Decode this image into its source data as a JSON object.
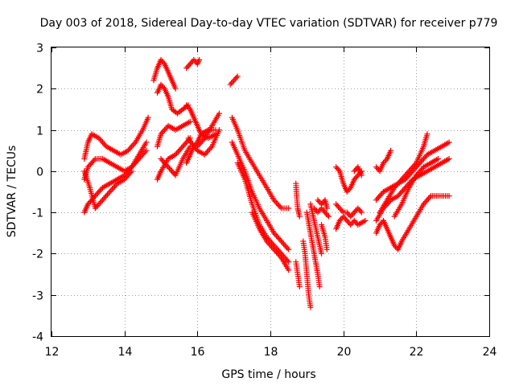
{
  "chart_data": {
    "type": "scatter",
    "title": "Day 003 of 2018, Sidereal Day-to-day VTEC variation (SDTVAR) for receiver p779",
    "xlabel": "GPS time / hours",
    "ylabel": "SDTVAR / TECUs",
    "xlim": [
      12,
      24
    ],
    "ylim": [
      -4,
      3
    ],
    "xticks": [
      "12",
      "14",
      "16",
      "18",
      "20",
      "22",
      "24"
    ],
    "yticks": [
      "-4",
      "-3",
      "-2",
      "-1",
      "0",
      "1",
      "2",
      "3"
    ],
    "grid": true,
    "marker": "plus",
    "color": "#ff0000",
    "series": [
      {
        "name": "track-1",
        "segments": [
          [
            [
              12.9,
              0.3
            ],
            [
              13.0,
              0.7
            ],
            [
              13.1,
              0.9
            ],
            [
              13.3,
              0.8
            ],
            [
              13.5,
              0.6
            ],
            [
              13.7,
              0.5
            ],
            [
              13.9,
              0.4
            ],
            [
              14.1,
              0.5
            ],
            [
              14.3,
              0.7
            ],
            [
              14.5,
              1.0
            ],
            [
              14.65,
              1.3
            ]
          ],
          [
            [
              12.9,
              -0.2
            ],
            [
              13.0,
              0.1
            ],
            [
              13.2,
              0.3
            ],
            [
              13.4,
              0.3
            ],
            [
              13.6,
              0.2
            ],
            [
              13.8,
              0.1
            ],
            [
              14.0,
              0.0
            ],
            [
              14.2,
              0.1
            ],
            [
              14.4,
              0.4
            ],
            [
              14.6,
              0.7
            ]
          ],
          [
            [
              12.9,
              -1.0
            ],
            [
              13.0,
              -0.8
            ],
            [
              13.2,
              -0.6
            ],
            [
              13.4,
              -0.4
            ],
            [
              13.6,
              -0.3
            ],
            [
              13.8,
              -0.2
            ],
            [
              14.0,
              -0.1
            ],
            [
              14.2,
              0.1
            ],
            [
              14.4,
              0.3
            ],
            [
              14.6,
              0.5
            ]
          ],
          [
            [
              12.9,
              0.0
            ],
            [
              13.05,
              -0.4
            ],
            [
              13.2,
              -0.9
            ],
            [
              13.4,
              -0.7
            ],
            [
              13.6,
              -0.5
            ],
            [
              13.8,
              -0.3
            ],
            [
              14.0,
              -0.2
            ],
            [
              14.2,
              0.0
            ]
          ]
        ]
      },
      {
        "name": "track-2",
        "segments": [
          [
            [
              14.8,
              2.2
            ],
            [
              14.9,
              2.5
            ],
            [
              15.0,
              2.7
            ],
            [
              15.1,
              2.6
            ],
            [
              15.2,
              2.4
            ],
            [
              15.3,
              2.2
            ],
            [
              15.4,
              2.0
            ]
          ],
          [
            [
              14.9,
              1.9
            ],
            [
              15.0,
              2.1
            ],
            [
              15.1,
              2.0
            ],
            [
              15.2,
              1.8
            ],
            [
              15.3,
              1.5
            ],
            [
              15.45,
              1.4
            ],
            [
              15.6,
              1.5
            ],
            [
              15.75,
              1.6
            ]
          ],
          [
            [
              14.9,
              0.6
            ],
            [
              15.0,
              0.9
            ],
            [
              15.2,
              1.1
            ],
            [
              15.4,
              1.0
            ],
            [
              15.6,
              1.1
            ],
            [
              15.8,
              1.2
            ]
          ],
          [
            [
              14.9,
              -0.2
            ],
            [
              15.0,
              0.0
            ],
            [
              15.2,
              0.3
            ],
            [
              15.4,
              0.4
            ],
            [
              15.6,
              0.6
            ],
            [
              15.8,
              0.8
            ]
          ],
          [
            [
              15.0,
              0.3
            ],
            [
              15.2,
              0.1
            ],
            [
              15.4,
              -0.1
            ],
            [
              15.6,
              0.3
            ],
            [
              15.8,
              0.6
            ]
          ]
        ]
      },
      {
        "name": "track-3",
        "segments": [
          [
            [
              15.7,
              2.5
            ],
            [
              15.8,
              2.6
            ],
            [
              15.9,
              2.7
            ],
            [
              16.0,
              2.6
            ],
            [
              16.05,
              2.7
            ]
          ],
          [
            [
              15.7,
              1.6
            ],
            [
              15.8,
              1.5
            ],
            [
              15.9,
              1.3
            ],
            [
              16.0,
              1.1
            ],
            [
              16.1,
              0.9
            ],
            [
              16.3,
              0.8
            ],
            [
              16.5,
              0.9
            ]
          ],
          [
            [
              15.7,
              0.2
            ],
            [
              15.8,
              0.4
            ],
            [
              15.9,
              0.6
            ],
            [
              16.0,
              0.7
            ],
            [
              16.1,
              0.9
            ],
            [
              16.3,
              1.0
            ],
            [
              16.5,
              1.0
            ]
          ],
          [
            [
              15.75,
              0.8
            ],
            [
              15.9,
              0.6
            ],
            [
              16.0,
              0.5
            ],
            [
              16.2,
              0.4
            ],
            [
              16.4,
              0.6
            ],
            [
              16.6,
              1.0
            ]
          ],
          [
            [
              16.0,
              0.6
            ],
            [
              16.2,
              0.8
            ],
            [
              16.4,
              1.1
            ],
            [
              16.6,
              1.4
            ]
          ]
        ]
      },
      {
        "name": "track-4",
        "segments": [
          [
            [
              16.9,
              2.1
            ],
            [
              17.0,
              2.2
            ],
            [
              17.1,
              2.3
            ]
          ],
          [
            [
              16.95,
              1.3
            ],
            [
              17.1,
              1.0
            ],
            [
              17.3,
              0.5
            ],
            [
              17.5,
              0.2
            ],
            [
              17.7,
              -0.1
            ],
            [
              17.9,
              -0.4
            ],
            [
              18.1,
              -0.7
            ],
            [
              18.3,
              -0.9
            ],
            [
              18.5,
              -0.9
            ]
          ],
          [
            [
              16.95,
              0.7
            ],
            [
              17.1,
              0.4
            ],
            [
              17.3,
              0.0
            ],
            [
              17.5,
              -0.5
            ],
            [
              17.7,
              -0.9
            ],
            [
              17.9,
              -1.2
            ],
            [
              18.1,
              -1.5
            ],
            [
              18.3,
              -1.7
            ],
            [
              18.5,
              -1.9
            ]
          ],
          [
            [
              17.1,
              0.2
            ],
            [
              17.3,
              -0.2
            ],
            [
              17.5,
              -0.8
            ],
            [
              17.7,
              -1.3
            ],
            [
              17.9,
              -1.6
            ],
            [
              18.1,
              -1.8
            ],
            [
              18.3,
              -2.0
            ],
            [
              18.5,
              -2.2
            ]
          ],
          [
            [
              17.5,
              -1.0
            ],
            [
              17.7,
              -1.4
            ],
            [
              17.9,
              -1.7
            ],
            [
              18.1,
              -1.9
            ],
            [
              18.3,
              -2.1
            ],
            [
              18.5,
              -2.4
            ]
          ]
        ]
      },
      {
        "name": "track-5",
        "segments": [
          [
            [
              18.7,
              -0.3
            ],
            [
              18.72,
              -0.6
            ],
            [
              18.75,
              -0.9
            ],
            [
              18.8,
              -1.1
            ]
          ],
          [
            [
              18.7,
              -2.2
            ],
            [
              18.75,
              -2.5
            ],
            [
              18.8,
              -2.8
            ]
          ],
          [
            [
              18.9,
              -1.7
            ],
            [
              18.95,
              -2.0
            ],
            [
              19.0,
              -2.5
            ],
            [
              19.05,
              -3.0
            ],
            [
              19.1,
              -3.3
            ]
          ],
          [
            [
              19.0,
              -1.0
            ],
            [
              19.1,
              -1.5
            ],
            [
              19.2,
              -2.0
            ],
            [
              19.3,
              -2.5
            ],
            [
              19.35,
              -2.8
            ]
          ],
          [
            [
              19.1,
              -0.8
            ],
            [
              19.2,
              -1.2
            ],
            [
              19.3,
              -1.6
            ],
            [
              19.4,
              -2.0
            ]
          ],
          [
            [
              19.2,
              -0.9
            ],
            [
              19.3,
              -1.0
            ],
            [
              19.4,
              -0.9
            ],
            [
              19.5,
              -1.0
            ],
            [
              19.6,
              -1.1
            ]
          ],
          [
            [
              19.3,
              -0.7
            ],
            [
              19.4,
              -0.8
            ],
            [
              19.5,
              -0.7
            ],
            [
              19.55,
              -0.9
            ]
          ],
          [
            [
              19.4,
              -1.3
            ],
            [
              19.5,
              -1.6
            ],
            [
              19.55,
              -1.9
            ]
          ]
        ]
      },
      {
        "name": "track-6",
        "segments": [
          [
            [
              19.8,
              0.1
            ],
            [
              19.9,
              0.0
            ],
            [
              20.0,
              -0.3
            ],
            [
              20.1,
              -0.5
            ],
            [
              20.2,
              -0.4
            ],
            [
              20.3,
              -0.2
            ],
            [
              20.4,
              -0.1
            ],
            [
              20.5,
              0.0
            ]
          ],
          [
            [
              19.8,
              -0.8
            ],
            [
              19.9,
              -0.9
            ],
            [
              20.0,
              -1.0
            ],
            [
              20.1,
              -1.0
            ],
            [
              20.2,
              -1.1
            ],
            [
              20.3,
              -1.0
            ],
            [
              20.4,
              -0.9
            ],
            [
              20.5,
              -1.0
            ]
          ],
          [
            [
              19.8,
              -1.4
            ],
            [
              19.9,
              -1.2
            ],
            [
              20.0,
              -1.1
            ],
            [
              20.1,
              -1.2
            ],
            [
              20.2,
              -1.3
            ],
            [
              20.3,
              -1.2
            ],
            [
              20.4,
              -1.3
            ],
            [
              20.6,
              -1.2
            ]
          ],
          [
            [
              20.3,
              0.0
            ],
            [
              20.4,
              0.1
            ],
            [
              20.5,
              -0.1
            ]
          ]
        ]
      },
      {
        "name": "track-7",
        "segments": [
          [
            [
              20.9,
              0.1
            ],
            [
              21.0,
              0.0
            ],
            [
              21.1,
              0.2
            ],
            [
              21.2,
              0.3
            ],
            [
              21.3,
              0.5
            ]
          ],
          [
            [
              20.9,
              -1.5
            ],
            [
              21.0,
              -1.3
            ],
            [
              21.1,
              -1.2
            ],
            [
              21.2,
              -1.4
            ],
            [
              21.3,
              -1.6
            ],
            [
              21.4,
              -1.8
            ],
            [
              21.5,
              -1.9
            ],
            [
              21.6,
              -1.7
            ],
            [
              21.8,
              -1.4
            ],
            [
              22.0,
              -1.1
            ],
            [
              22.2,
              -0.8
            ],
            [
              22.4,
              -0.6
            ],
            [
              22.6,
              -0.6
            ],
            [
              22.8,
              -0.6
            ],
            [
              22.9,
              -0.6
            ]
          ],
          [
            [
              20.9,
              -0.7
            ],
            [
              21.1,
              -0.5
            ],
            [
              21.3,
              -0.4
            ],
            [
              21.5,
              -0.3
            ],
            [
              21.7,
              -0.2
            ],
            [
              21.9,
              0.0
            ],
            [
              22.1,
              0.2
            ],
            [
              22.3,
              0.4
            ],
            [
              22.5,
              0.5
            ],
            [
              22.7,
              0.6
            ],
            [
              22.9,
              0.7
            ]
          ],
          [
            [
              20.9,
              -1.2
            ],
            [
              21.1,
              -0.9
            ],
            [
              21.3,
              -0.7
            ],
            [
              21.5,
              -0.6
            ],
            [
              21.7,
              -0.4
            ],
            [
              21.9,
              -0.2
            ],
            [
              22.1,
              -0.1
            ],
            [
              22.3,
              0.0
            ],
            [
              22.5,
              0.1
            ],
            [
              22.7,
              0.2
            ],
            [
              22.9,
              0.3
            ]
          ],
          [
            [
              21.0,
              -1.0
            ],
            [
              21.2,
              -0.7
            ],
            [
              21.4,
              -0.4
            ],
            [
              21.6,
              -0.2
            ],
            [
              21.8,
              0.0
            ],
            [
              22.0,
              0.2
            ],
            [
              22.2,
              0.6
            ],
            [
              22.3,
              0.9
            ]
          ],
          [
            [
              21.4,
              -1.1
            ],
            [
              21.6,
              -0.8
            ],
            [
              21.8,
              -0.4
            ],
            [
              22.0,
              -0.1
            ],
            [
              22.2,
              0.1
            ],
            [
              22.4,
              0.2
            ],
            [
              22.6,
              0.3
            ]
          ]
        ]
      }
    ]
  }
}
